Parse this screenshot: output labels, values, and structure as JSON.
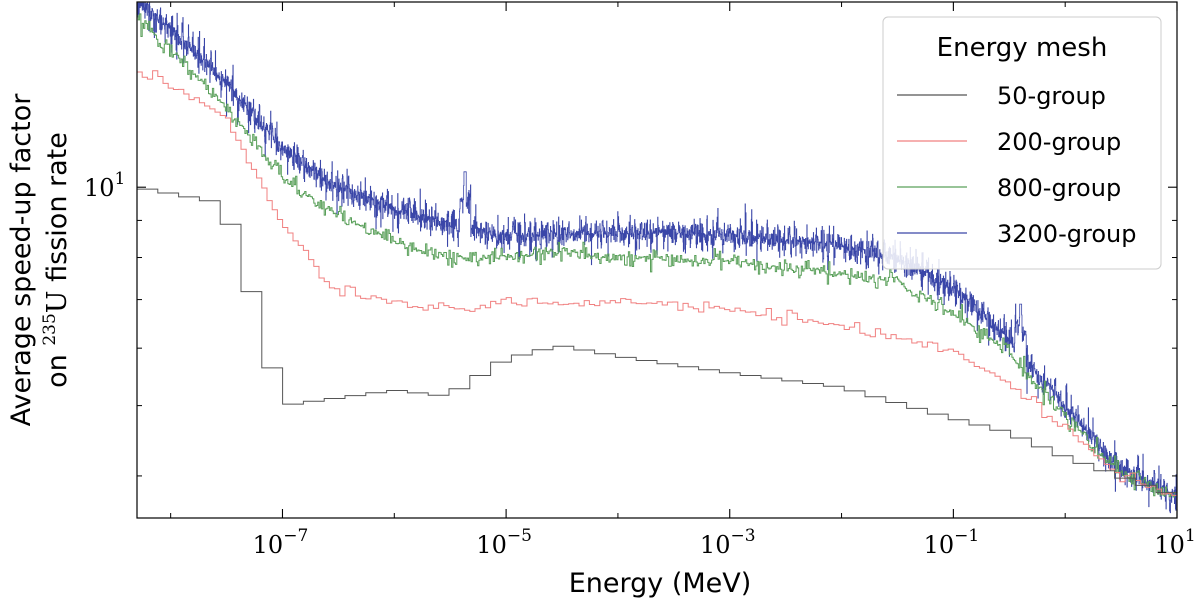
{
  "chart_data": {
    "type": "line",
    "step": true,
    "x_scale": "log",
    "y_scale": "log",
    "xlim": [
      5e-09,
      10
    ],
    "ylim": [
      3.5,
      18
    ],
    "xlabel": "Energy (MeV)",
    "ylabel_line1": "Average speed-up factor",
    "ylabel_line2_prefix": "on ",
    "ylabel_line2_sup": "235",
    "ylabel_line2_main": "U",
    "ylabel_line2_suffix": " fission rate",
    "x_ticks": [
      {
        "value": 1e-07,
        "base": "10",
        "exp": "−7"
      },
      {
        "value": 1e-05,
        "base": "10",
        "exp": "−5"
      },
      {
        "value": 0.001,
        "base": "10",
        "exp": "−3"
      },
      {
        "value": 0.1,
        "base": "10",
        "exp": "−1"
      },
      {
        "value": 10,
        "base": "10",
        "exp": "1"
      }
    ],
    "y_ticks": [
      {
        "value": 10,
        "base": "10",
        "exp": "1"
      }
    ],
    "legend_title": "Energy mesh",
    "legend_position": "top-right",
    "series": [
      {
        "name": "50-group",
        "color": "#555555",
        "groups": 50,
        "noise": 0.0,
        "x": [
          5e-09,
          3e-08,
          5e-08,
          1e-07,
          1e-06,
          3e-06,
          1e-05,
          3e-05,
          0.0001,
          0.0003,
          0.001,
          0.01,
          0.1,
          0.3,
          1,
          3,
          10
        ],
        "y": [
          10.0,
          9.5,
          7.4,
          5.0,
          5.25,
          5.15,
          5.8,
          6.05,
          5.85,
          5.7,
          5.55,
          5.3,
          4.8,
          4.6,
          4.25,
          4.0,
          3.75
        ]
      },
      {
        "name": "200-group",
        "color": "#f08080",
        "groups": 200,
        "noise": 0.015,
        "x": [
          5e-09,
          3e-08,
          1e-07,
          3e-07,
          1e-06,
          5e-06,
          1e-05,
          3e-05,
          0.0001,
          0.001,
          0.01,
          0.1,
          0.3,
          1,
          3,
          10
        ],
        "y": [
          14.5,
          12.6,
          8.9,
          7.2,
          6.95,
          6.75,
          7.0,
          6.9,
          6.95,
          6.8,
          6.45,
          5.95,
          5.4,
          4.7,
          4.0,
          3.75
        ]
      },
      {
        "name": "800-group",
        "color": "#5aa05a",
        "groups": 800,
        "noise": 0.025,
        "x": [
          5e-09,
          1e-08,
          3e-08,
          1e-07,
          3e-07,
          1e-06,
          3e-06,
          1e-05,
          3e-05,
          0.0001,
          0.001,
          0.01,
          0.03,
          0.1,
          0.3,
          1,
          3,
          10
        ],
        "y": [
          17.0,
          15.5,
          13.0,
          10.3,
          9.2,
          8.4,
          8.0,
          8.0,
          8.15,
          8.0,
          7.9,
          7.6,
          7.4,
          6.7,
          5.95,
          4.85,
          4.05,
          3.75
        ]
      },
      {
        "name": "3200-group",
        "color": "#3a46a8",
        "groups": 3200,
        "noise": 0.045,
        "x": [
          5e-09,
          1e-08,
          3e-08,
          1e-07,
          3e-07,
          1e-06,
          3e-06,
          1e-05,
          3e-05,
          0.0001,
          0.001,
          0.01,
          0.03,
          0.1,
          0.3,
          1,
          3,
          10
        ],
        "y": [
          18.0,
          16.5,
          14.0,
          11.3,
          10.0,
          9.3,
          8.9,
          8.55,
          8.6,
          8.65,
          8.6,
          8.3,
          8.0,
          7.25,
          6.2,
          5.0,
          4.1,
          3.75
        ],
        "peaks": [
          {
            "x": 4.3e-06,
            "y": 10.5
          },
          {
            "x": 0.4,
            "y": 6.9
          }
        ]
      }
    ]
  }
}
